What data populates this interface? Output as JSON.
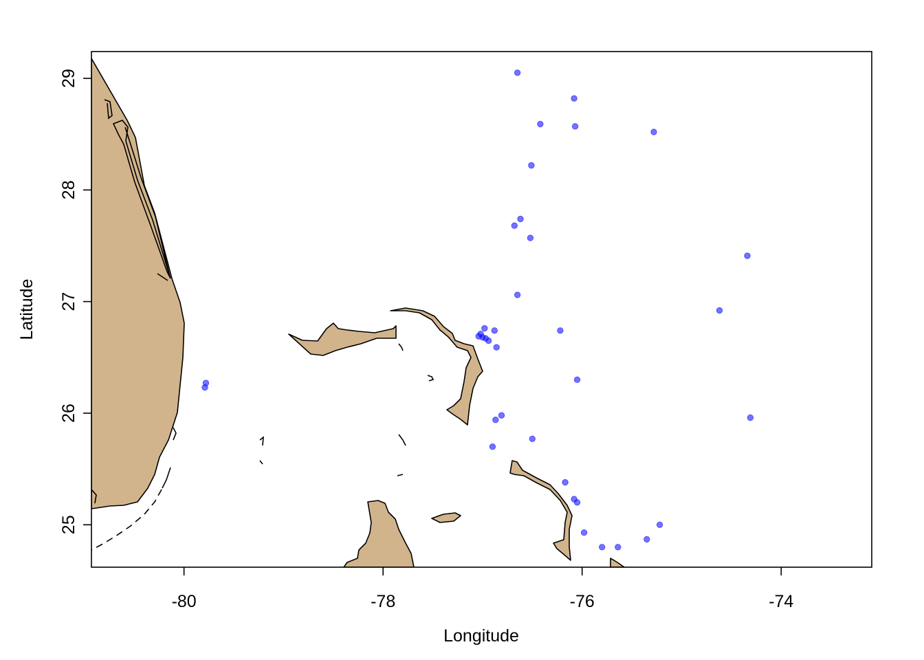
{
  "chart_data": {
    "type": "scatter",
    "xlabel": "Longitude",
    "ylabel": "Latitude",
    "xlim": [
      -80.93,
      -73.09
    ],
    "ylim": [
      24.62,
      29.24
    ],
    "x_ticks": [
      -80,
      -78,
      -76,
      -74
    ],
    "y_ticks": [
      25,
      26,
      27,
      28,
      29
    ],
    "x_tick_labels": [
      "-80",
      "-78",
      "-76",
      "-74"
    ],
    "y_tick_labels": [
      "25",
      "26",
      "27",
      "28",
      "29"
    ],
    "grid": false,
    "legend": "none",
    "colors": {
      "points": "#0000FF",
      "land": "#D2B48C",
      "outline": "#000000"
    },
    "points": [
      {
        "x": -79.78,
        "y": 26.27
      },
      {
        "x": -79.79,
        "y": 26.23
      },
      {
        "x": -76.65,
        "y": 29.05
      },
      {
        "x": -76.08,
        "y": 28.82
      },
      {
        "x": -76.42,
        "y": 28.59
      },
      {
        "x": -76.07,
        "y": 28.57
      },
      {
        "x": -75.28,
        "y": 28.52
      },
      {
        "x": -76.51,
        "y": 28.22
      },
      {
        "x": -76.62,
        "y": 27.74
      },
      {
        "x": -76.68,
        "y": 27.68
      },
      {
        "x": -76.52,
        "y": 27.57
      },
      {
        "x": -74.34,
        "y": 27.41
      },
      {
        "x": -76.65,
        "y": 27.06
      },
      {
        "x": -74.62,
        "y": 26.92
      },
      {
        "x": -76.22,
        "y": 26.74
      },
      {
        "x": -76.98,
        "y": 26.76
      },
      {
        "x": -76.88,
        "y": 26.74
      },
      {
        "x": -77.02,
        "y": 26.71
      },
      {
        "x": -77.04,
        "y": 26.69
      },
      {
        "x": -77.0,
        "y": 26.68
      },
      {
        "x": -76.97,
        "y": 26.67
      },
      {
        "x": -76.94,
        "y": 26.65
      },
      {
        "x": -76.86,
        "y": 26.59
      },
      {
        "x": -76.05,
        "y": 26.3
      },
      {
        "x": -76.81,
        "y": 25.98
      },
      {
        "x": -76.87,
        "y": 25.94
      },
      {
        "x": -74.31,
        "y": 25.96
      },
      {
        "x": -76.5,
        "y": 25.77
      },
      {
        "x": -76.9,
        "y": 25.7
      },
      {
        "x": -76.17,
        "y": 25.38
      },
      {
        "x": -76.08,
        "y": 25.23
      },
      {
        "x": -76.05,
        "y": 25.2
      },
      {
        "x": -75.22,
        "y": 25.0
      },
      {
        "x": -75.98,
        "y": 24.93
      },
      {
        "x": -75.35,
        "y": 24.87
      },
      {
        "x": -75.8,
        "y": 24.8
      },
      {
        "x": -75.64,
        "y": 24.8
      }
    ]
  }
}
